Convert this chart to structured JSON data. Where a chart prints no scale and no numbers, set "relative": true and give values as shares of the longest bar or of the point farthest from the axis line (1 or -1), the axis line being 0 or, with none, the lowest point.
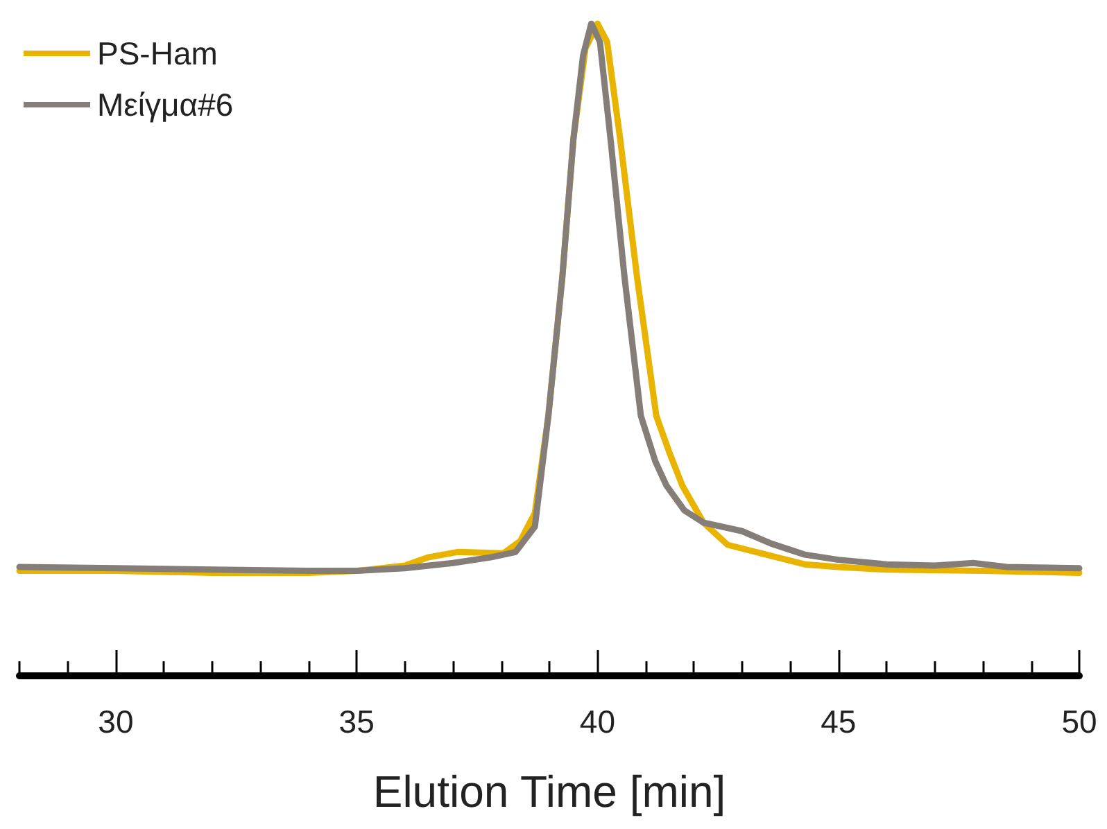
{
  "chart_data": {
    "type": "line",
    "xlabel": "Elution Time [min]",
    "relative": true,
    "legend": "top left",
    "grid": false,
    "marker": "none",
    "line_style": "solid",
    "xlim": [
      28,
      50
    ],
    "xticks": [
      {
        "value": 28,
        "label": null
      },
      {
        "value": 29,
        "label": null
      },
      30,
      {
        "value": 31,
        "label": null
      },
      {
        "value": 32,
        "label": null
      },
      {
        "value": 33,
        "label": null
      },
      {
        "value": 34,
        "label": null
      },
      35,
      {
        "value": 36,
        "label": null
      },
      {
        "value": 37,
        "label": null
      },
      {
        "value": 38,
        "label": null
      },
      {
        "value": 39,
        "label": null
      },
      40,
      {
        "value": 41,
        "label": null
      },
      {
        "value": 42,
        "label": null
      },
      {
        "value": 43,
        "label": null
      },
      {
        "value": 44,
        "label": null
      },
      45,
      {
        "value": 46,
        "label": null
      },
      {
        "value": 47,
        "label": null
      },
      {
        "value": 48,
        "label": null
      },
      {
        "value": 49,
        "label": null
      },
      50
    ],
    "series": [
      {
        "name": "PS-Ham",
        "color": "#e8b400",
        "x": [
          28,
          30,
          32,
          34,
          35,
          36,
          36.5,
          37.1,
          38.05,
          38.4,
          38.7,
          38.98,
          39.27,
          39.5,
          39.75,
          40.0,
          40.2,
          40.47,
          40.82,
          41.22,
          41.5,
          41.76,
          42.2,
          42.7,
          43.5,
          44.3,
          45,
          46,
          48,
          50
        ],
        "values": [
          0.16,
          0.16,
          0.157,
          0.157,
          0.16,
          0.168,
          0.181,
          0.189,
          0.187,
          0.206,
          0.249,
          0.398,
          0.611,
          0.823,
          0.962,
          1,
          0.972,
          0.823,
          0.611,
          0.398,
          0.34,
          0.291,
          0.234,
          0.2,
          0.185,
          0.17,
          0.166,
          0.162,
          0.16,
          0.157
        ]
      },
      {
        "name": "Μείγμα#6",
        "color": "#857d78",
        "x": [
          28,
          30,
          32,
          34,
          35,
          36,
          37,
          37.8,
          38.3,
          38.7,
          38.98,
          39.27,
          39.5,
          39.7,
          39.87,
          40.05,
          40.27,
          40.56,
          40.9,
          41.2,
          41.43,
          41.8,
          42.2,
          43,
          43.6,
          44.3,
          45,
          46,
          47,
          47.8,
          48.5,
          50
        ],
        "values": [
          0.166,
          0.164,
          0.162,
          0.16,
          0.16,
          0.164,
          0.172,
          0.181,
          0.189,
          0.228,
          0.398,
          0.611,
          0.823,
          0.951,
          1,
          0.972,
          0.823,
          0.611,
          0.398,
          0.328,
          0.291,
          0.253,
          0.234,
          0.221,
          0.202,
          0.185,
          0.177,
          0.17,
          0.168,
          0.172,
          0.166,
          0.164
        ]
      }
    ]
  }
}
